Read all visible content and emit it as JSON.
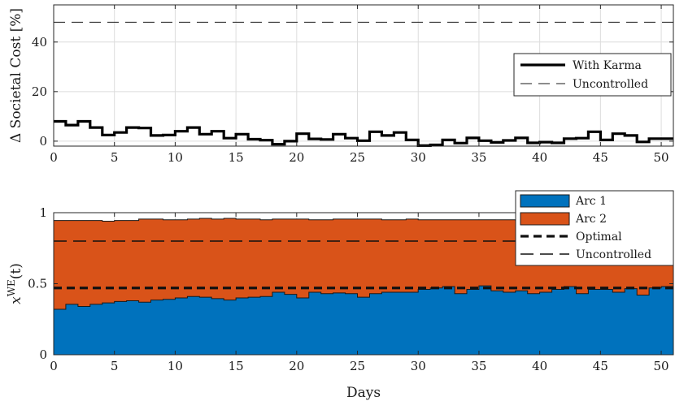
{
  "chart_data": [
    {
      "type": "line",
      "ylabel": "Δ Societal Cost [%]",
      "xlabel": "",
      "xlim": [
        0,
        51
      ],
      "ylim": [
        -2,
        55
      ],
      "xticks": [
        "0",
        "5",
        "10",
        "15",
        "20",
        "25",
        "30",
        "35",
        "40",
        "45",
        "50"
      ],
      "yticks": [
        "0",
        "20",
        "40"
      ],
      "grid": true,
      "legend_position": "right-middle",
      "series": [
        {
          "name": "With Karma",
          "style": "solid-thick",
          "values": [
            8,
            6.5,
            8,
            5.5,
            2.5,
            3.5,
            5.5,
            5.3,
            2.3,
            2.5,
            4,
            5.5,
            2.8,
            4,
            1.2,
            2.8,
            0.8,
            0.4,
            -1.2,
            0,
            3,
            0.9,
            0.7,
            2.8,
            1.2,
            0.2,
            3.8,
            2.3,
            3.5,
            0.5,
            -1.8,
            -1.5,
            0.5,
            -0.8,
            1.3,
            0.2,
            -0.5,
            0.3,
            1.3,
            -0.7,
            -0.4,
            -0.7,
            1,
            1.2,
            3.8,
            0.5,
            3,
            2.3,
            -0.3,
            1,
            1
          ]
        },
        {
          "name": "Uncontrolled",
          "style": "dashed-thin",
          "constant": 48
        }
      ]
    },
    {
      "type": "area",
      "ylabel": "x^{WE}(t)",
      "xlabel": "Days",
      "xlim": [
        0,
        51
      ],
      "ylim": [
        0,
        1
      ],
      "xticks": [
        "0",
        "5",
        "10",
        "15",
        "20",
        "25",
        "30",
        "35",
        "40",
        "45",
        "50"
      ],
      "yticks": [
        "0",
        "0.5",
        "1"
      ],
      "grid": true,
      "legend_position": "top-right",
      "stacked": true,
      "series": [
        {
          "name": "Arc 1",
          "color": "#0072bd",
          "values": [
            0.32,
            0.355,
            0.34,
            0.355,
            0.365,
            0.375,
            0.38,
            0.37,
            0.385,
            0.39,
            0.4,
            0.41,
            0.405,
            0.395,
            0.385,
            0.4,
            0.405,
            0.41,
            0.44,
            0.425,
            0.4,
            0.44,
            0.43,
            0.435,
            0.43,
            0.405,
            0.43,
            0.44,
            0.44,
            0.44,
            0.46,
            0.47,
            0.48,
            0.43,
            0.46,
            0.485,
            0.45,
            0.44,
            0.45,
            0.43,
            0.44,
            0.46,
            0.48,
            0.43,
            0.46,
            0.46,
            0.44,
            0.465,
            0.42,
            0.47,
            0.48
          ]
        },
        {
          "name": "Arc 2",
          "color": "#d95319",
          "values": [
            0.625,
            0.59,
            0.605,
            0.59,
            0.575,
            0.57,
            0.565,
            0.585,
            0.57,
            0.56,
            0.55,
            0.545,
            0.555,
            0.56,
            0.575,
            0.555,
            0.55,
            0.54,
            0.515,
            0.53,
            0.555,
            0.51,
            0.52,
            0.52,
            0.525,
            0.55,
            0.525,
            0.51,
            0.51,
            0.515,
            0.49,
            0.48,
            0.47,
            0.52,
            0.49,
            0.465,
            0.5,
            0.51,
            0.495,
            0.52,
            0.51,
            0.49,
            0.465,
            0.515,
            0.49,
            0.485,
            0.51,
            0.485,
            0.53,
            0.475,
            0.47
          ]
        },
        {
          "name": "Optimal",
          "style": "dashed-thick",
          "constant": 0.47
        },
        {
          "name": "Uncontrolled",
          "style": "dashed-thin",
          "constant": 0.8
        }
      ]
    }
  ]
}
